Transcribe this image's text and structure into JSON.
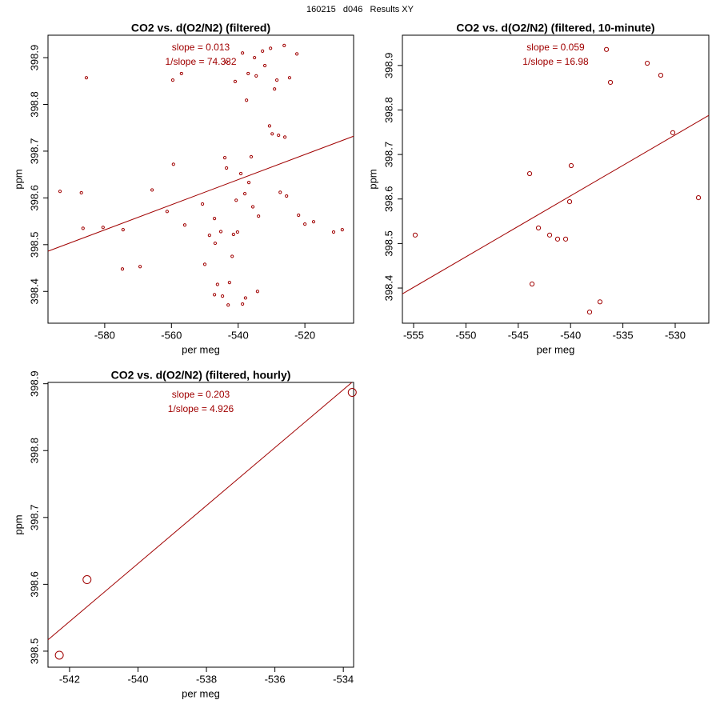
{
  "page_title": "160215   d046   Results XY",
  "chart_data": [
    {
      "type": "scatter",
      "title": "CO2 vs. d(O2/N2) (filtered)",
      "x_label": "per meg",
      "y_label": "ppm",
      "annotations": [
        "slope = 0.013",
        "1/slope = 74.332"
      ],
      "color": "#a00000",
      "xlim": [
        -597,
        -505.4
      ],
      "ylim": [
        398.332,
        398.948
      ],
      "xticks": [
        -580,
        -560,
        -540,
        -520
      ],
      "yticks": [
        398.4,
        398.5,
        398.6,
        398.7,
        398.8,
        398.9
      ],
      "x": [
        -593.4,
        -587.0,
        -586.5,
        -585.5,
        -580.5,
        -574.5,
        -574.7,
        -569.4,
        -565.8,
        -561.3,
        -559.4,
        -559.6,
        -557.0,
        -556.0,
        -550.7,
        -550.0,
        -548.6,
        -547.1,
        -547.1,
        -546.2,
        -544.7,
        -543.5,
        -544.0,
        -543.0,
        -542.6,
        -541.8,
        -541.4,
        -540.6,
        -539.2,
        -538.7,
        -538.7,
        -537.8,
        -538.0,
        -537.5,
        -537.0,
        -536.1,
        -535.6,
        -534.6,
        -534.2,
        -533.9,
        -532.7,
        -532.0,
        -530.3,
        -529.1,
        -527.9,
        -527.4,
        -526.0,
        -524.6,
        -530.6,
        -525.5,
        -521.9,
        -520.0,
        -517.4,
        -511.4,
        -508.8,
        -522.4,
        -526.2,
        -535.1,
        -540.9,
        -543.5,
        -546.9,
        -540.2,
        -536.8,
        -545.2,
        -529.8,
        -528.4
      ],
      "values": [
        398.614,
        398.611,
        398.535,
        398.857,
        398.537,
        398.532,
        398.448,
        398.453,
        398.617,
        398.571,
        398.672,
        398.852,
        398.866,
        398.542,
        398.587,
        398.458,
        398.52,
        398.556,
        398.393,
        398.415,
        398.39,
        398.664,
        398.686,
        398.371,
        398.419,
        398.475,
        398.522,
        398.595,
        398.652,
        398.91,
        398.373,
        398.386,
        398.609,
        398.809,
        398.866,
        398.688,
        398.581,
        398.861,
        398.4,
        398.561,
        398.914,
        398.883,
        398.92,
        398.833,
        398.734,
        398.612,
        398.73,
        398.857,
        398.754,
        398.604,
        398.563,
        398.544,
        398.549,
        398.527,
        398.532,
        398.908,
        398.926,
        398.9,
        398.849,
        398.891,
        398.503,
        398.527,
        398.633,
        398.528,
        398.737,
        398.852
      ],
      "fit": {
        "x": [
          -597,
          -505.4
        ],
        "y": [
          398.486,
          398.732
        ]
      }
    },
    {
      "type": "scatter",
      "title": "CO2 vs. d(O2/N2) (filtered, 10-minute)",
      "x_label": "per meg",
      "y_label": "ppm",
      "annotations": [
        "slope = 0.059",
        "1/slope = 16.98"
      ],
      "color": "#a00000",
      "xlim": [
        -556.07,
        -526.79
      ],
      "ylim": [
        398.321,
        398.968
      ],
      "xticks": [
        -555,
        -550,
        -545,
        -540,
        -535,
        -530
      ],
      "yticks": [
        398.4,
        398.5,
        398.6,
        398.7,
        398.8,
        398.9
      ],
      "x": [
        -554.85,
        -543.91,
        -543.07,
        -543.68,
        -542.0,
        -541.24,
        -540.47,
        -540.09,
        -539.94,
        -538.18,
        -537.19,
        -536.57,
        -536.19,
        -532.67,
        -531.38,
        -530.23,
        -527.78
      ],
      "values": [
        398.519,
        398.657,
        398.535,
        398.409,
        398.519,
        398.51,
        398.51,
        398.594,
        398.675,
        398.346,
        398.369,
        398.936,
        398.862,
        398.905,
        398.878,
        398.749,
        398.603
      ],
      "fit": {
        "x": [
          -556.07,
          -526.79
        ],
        "y": [
          398.387,
          398.788
        ]
      }
    },
    {
      "type": "scatter",
      "title": "CO2 vs. d(O2/N2) (filtered, hourly)",
      "x_label": "per meg",
      "y_label": "ppm",
      "annotations": [
        "slope = 0.203",
        "1/slope = 4.926"
      ],
      "color": "#a00000",
      "xlim": [
        -542.63,
        -533.7
      ],
      "ylim": [
        398.476,
        398.902
      ],
      "xticks": [
        -542,
        -540,
        -538,
        -536,
        -534
      ],
      "yticks": [
        398.5,
        398.6,
        398.7,
        398.8,
        398.9
      ],
      "x": [
        -542.3,
        -541.49,
        -533.74
      ],
      "values": [
        398.494,
        398.607,
        398.887
      ],
      "fit": {
        "x": [
          -542.63,
          -533.75
        ],
        "y": [
          398.517,
          398.902
        ]
      }
    }
  ]
}
